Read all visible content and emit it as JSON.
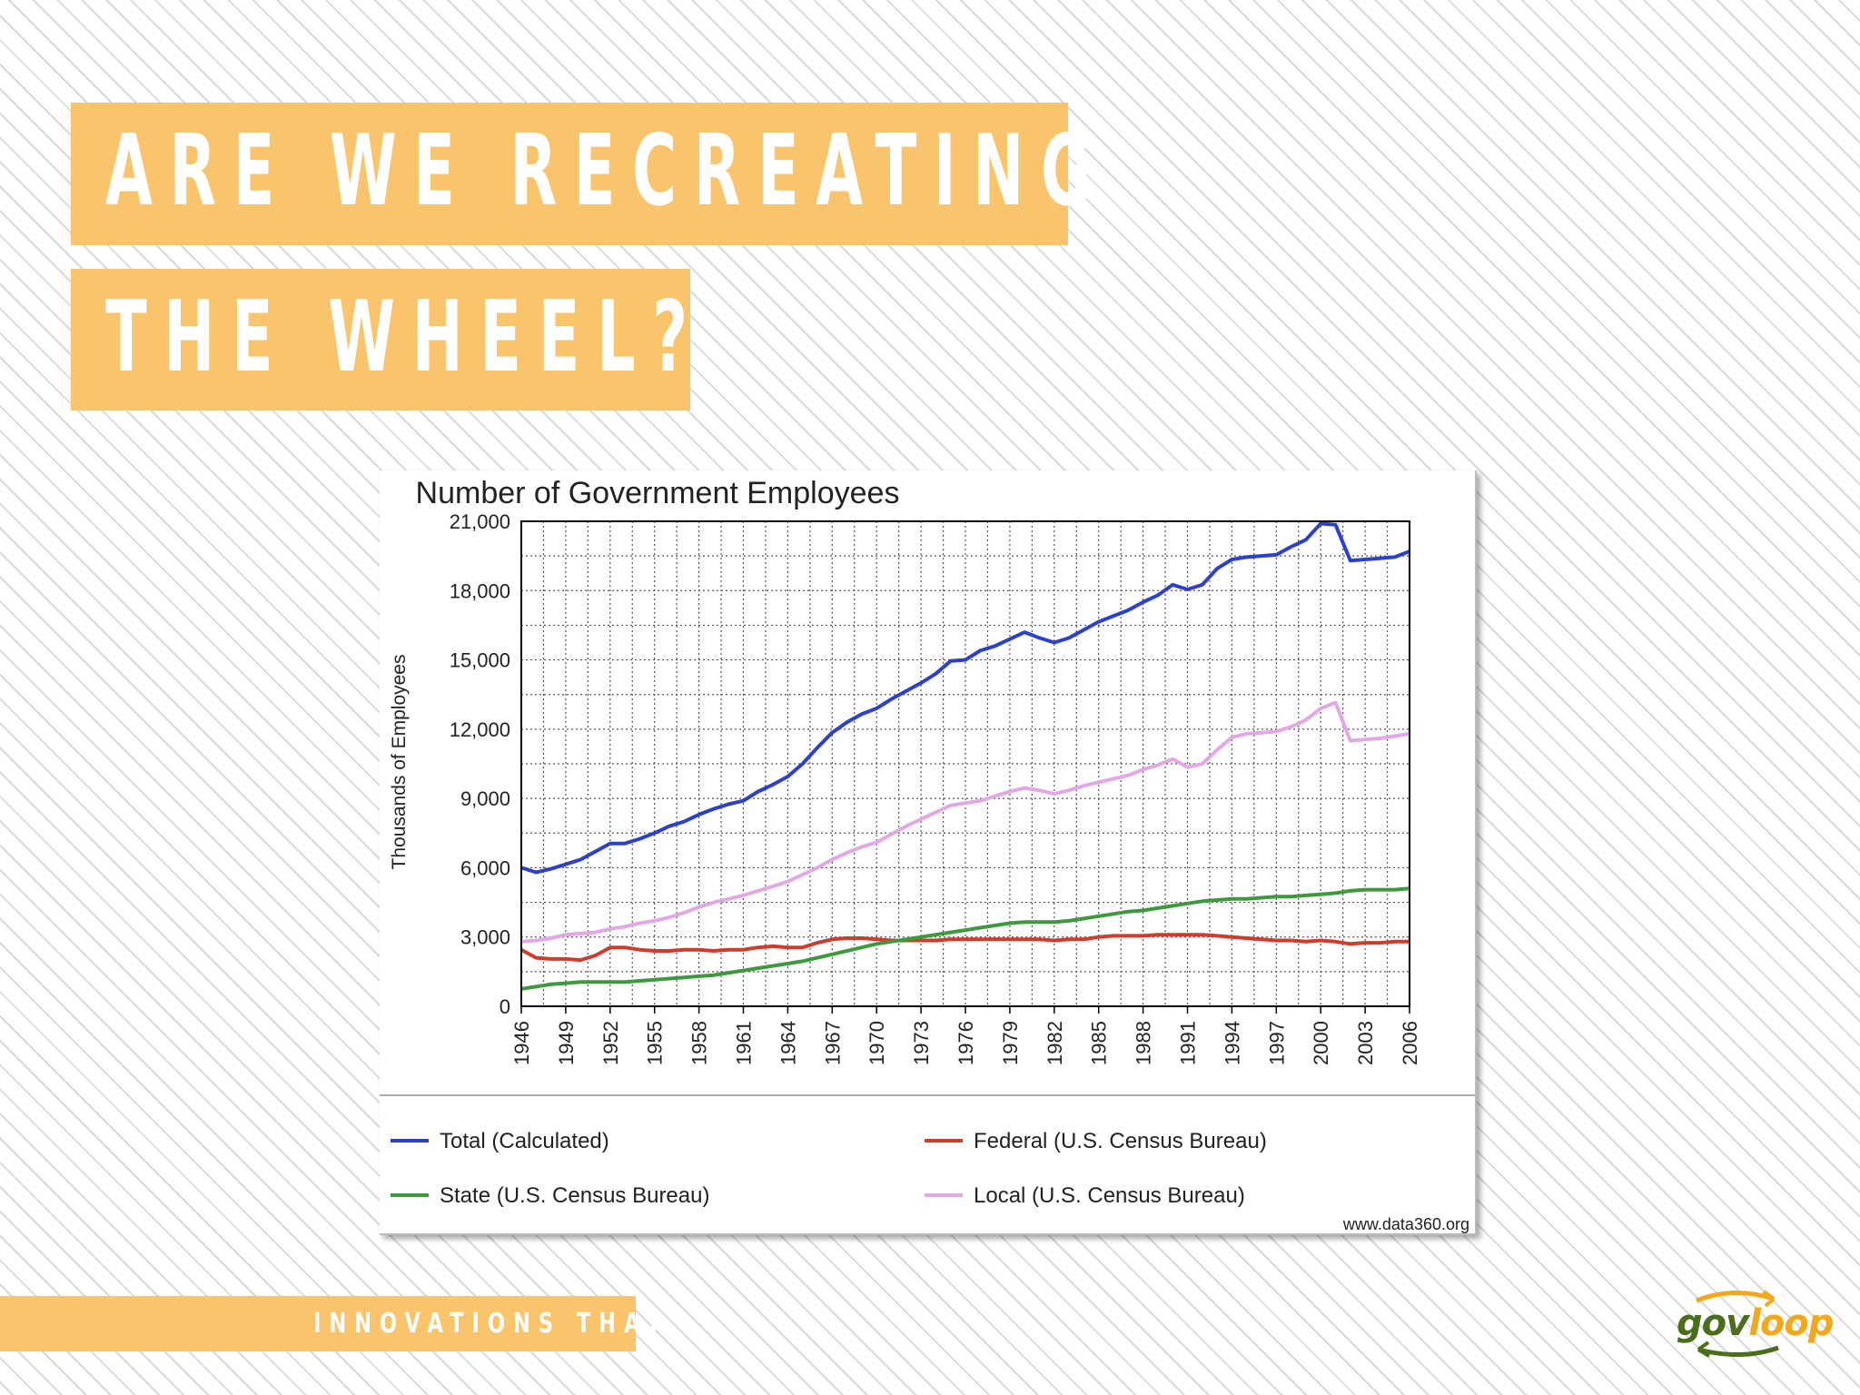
{
  "slide": {
    "title_line1": "ARE WE RECREATING",
    "title_line2": "THE WHEEL?",
    "footer_text": "INNOVATIONS THAT",
    "logo_gov": "gov",
    "logo_loop": "loop",
    "accent_color": "#f9c46b"
  },
  "chart_data": {
    "type": "line",
    "title": "Number of Government Employees",
    "xlabel": "",
    "ylabel": "Thousands of Employees",
    "xlim": [
      1946,
      2006
    ],
    "ylim": [
      0,
      21000
    ],
    "yticks": [
      0,
      3000,
      6000,
      9000,
      12000,
      15000,
      18000,
      21000
    ],
    "ytick_labels": [
      "0",
      "3,000",
      "6,000",
      "9,000",
      "12,000",
      "15,000",
      "18,000",
      "21,000"
    ],
    "xticks": [
      1946,
      1949,
      1952,
      1955,
      1958,
      1961,
      1964,
      1967,
      1970,
      1973,
      1976,
      1979,
      1982,
      1985,
      1988,
      1991,
      1994,
      1997,
      2000,
      2003,
      2006
    ],
    "xtick_labels": [
      "1946",
      "1949",
      "1952",
      "1955",
      "1958",
      "1961",
      "1964",
      "1967",
      "1970",
      "1973",
      "1976",
      "1979",
      "1982",
      "1985",
      "1988",
      "1991",
      "1994",
      "1997",
      "2000",
      "2003",
      "2006"
    ],
    "grid": true,
    "legend_position": "bottom",
    "source_note": "www.data360.org",
    "series": [
      {
        "name": "Total (Calculated)",
        "color": "#2b3fd0",
        "x": [
          1946,
          1947,
          1948,
          1949,
          1950,
          1951,
          1952,
          1953,
          1954,
          1955,
          1956,
          1957,
          1958,
          1959,
          1960,
          1961,
          1962,
          1963,
          1964,
          1965,
          1966,
          1967,
          1968,
          1969,
          1970,
          1971,
          1972,
          1973,
          1974,
          1975,
          1976,
          1977,
          1978,
          1979,
          1980,
          1981,
          1982,
          1983,
          1984,
          1985,
          1986,
          1987,
          1988,
          1989,
          1990,
          1991,
          1992,
          1993,
          1994,
          1995,
          1996,
          1997,
          1998,
          1999,
          2000,
          2001,
          2002,
          2003,
          2004,
          2005,
          2006
        ],
        "values": [
          6000,
          5800,
          5950,
          6150,
          6350,
          6700,
          7050,
          7050,
          7250,
          7500,
          7800,
          8000,
          8300,
          8550,
          8750,
          8900,
          9300,
          9600,
          9950,
          10500,
          11200,
          11850,
          12300,
          12650,
          12900,
          13300,
          13650,
          14000,
          14400,
          14950,
          15000,
          15400,
          15600,
          15900,
          16200,
          15950,
          15750,
          15950,
          16300,
          16650,
          16900,
          17150,
          17500,
          17800,
          18250,
          18050,
          18250,
          18950,
          19350,
          19450,
          19500,
          19550,
          19900,
          20200,
          20900,
          20850,
          19300,
          19350,
          19400,
          19450,
          19700
        ]
      },
      {
        "name": "Federal (U.S. Census Bureau)",
        "color": "#d23a2c",
        "x": [
          1946,
          1947,
          1948,
          1949,
          1950,
          1951,
          1952,
          1953,
          1954,
          1955,
          1956,
          1957,
          1958,
          1959,
          1960,
          1961,
          1962,
          1963,
          1964,
          1965,
          1966,
          1967,
          1968,
          1969,
          1970,
          1971,
          1972,
          1973,
          1974,
          1975,
          1976,
          1977,
          1978,
          1979,
          1980,
          1981,
          1982,
          1983,
          1984,
          1985,
          1986,
          1987,
          1988,
          1989,
          1990,
          1991,
          1992,
          1993,
          1994,
          1995,
          1996,
          1997,
          1998,
          1999,
          2000,
          2001,
          2002,
          2003,
          2004,
          2005,
          2006
        ],
        "values": [
          2450,
          2100,
          2050,
          2050,
          2000,
          2200,
          2550,
          2550,
          2450,
          2400,
          2400,
          2450,
          2450,
          2400,
          2450,
          2450,
          2550,
          2600,
          2550,
          2550,
          2750,
          2900,
          2950,
          2950,
          2900,
          2850,
          2850,
          2850,
          2850,
          2900,
          2900,
          2900,
          2900,
          2900,
          2900,
          2900,
          2850,
          2900,
          2900,
          3000,
          3050,
          3050,
          3050,
          3100,
          3100,
          3100,
          3100,
          3050,
          3000,
          2950,
          2900,
          2850,
          2850,
          2800,
          2850,
          2800,
          2700,
          2750,
          2750,
          2800,
          2800
        ]
      },
      {
        "name": "State (U.S. Census Bureau)",
        "color": "#3c9a3c",
        "x": [
          1946,
          1947,
          1948,
          1949,
          1950,
          1951,
          1952,
          1953,
          1954,
          1955,
          1956,
          1957,
          1958,
          1959,
          1960,
          1961,
          1962,
          1963,
          1964,
          1965,
          1966,
          1967,
          1968,
          1969,
          1970,
          1971,
          1972,
          1973,
          1974,
          1975,
          1976,
          1977,
          1978,
          1979,
          1980,
          1981,
          1982,
          1983,
          1984,
          1985,
          1986,
          1987,
          1988,
          1989,
          1990,
          1991,
          1992,
          1993,
          1994,
          1995,
          1996,
          1997,
          1998,
          1999,
          2000,
          2001,
          2002,
          2003,
          2004,
          2005,
          2006
        ],
        "values": [
          750,
          850,
          950,
          1000,
          1050,
          1050,
          1050,
          1050,
          1100,
          1150,
          1200,
          1250,
          1300,
          1350,
          1450,
          1550,
          1650,
          1750,
          1850,
          1950,
          2100,
          2250,
          2400,
          2550,
          2700,
          2800,
          2900,
          3000,
          3100,
          3200,
          3300,
          3400,
          3500,
          3600,
          3650,
          3650,
          3650,
          3700,
          3800,
          3900,
          4000,
          4100,
          4150,
          4250,
          4350,
          4450,
          4550,
          4600,
          4650,
          4650,
          4700,
          4750,
          4750,
          4800,
          4850,
          4900,
          5000,
          5050,
          5050,
          5050,
          5100
        ]
      },
      {
        "name": "Local  (U.S. Census Bureau)",
        "color": "#e2a8e6",
        "x": [
          1946,
          1947,
          1948,
          1949,
          1950,
          1951,
          1952,
          1953,
          1954,
          1955,
          1956,
          1957,
          1958,
          1959,
          1960,
          1961,
          1962,
          1963,
          1964,
          1965,
          1966,
          1967,
          1968,
          1969,
          1970,
          1971,
          1972,
          1973,
          1974,
          1975,
          1976,
          1977,
          1978,
          1979,
          1980,
          1981,
          1982,
          1983,
          1984,
          1985,
          1986,
          1987,
          1988,
          1989,
          1990,
          1991,
          1992,
          1993,
          1994,
          1995,
          1996,
          1997,
          1998,
          1999,
          2000,
          2001,
          2002,
          2003,
          2004,
          2005,
          2006
        ],
        "values": [
          2800,
          2850,
          2950,
          3100,
          3150,
          3200,
          3350,
          3450,
          3600,
          3700,
          3850,
          4050,
          4300,
          4500,
          4650,
          4800,
          5000,
          5200,
          5400,
          5700,
          6000,
          6350,
          6650,
          6900,
          7100,
          7450,
          7800,
          8100,
          8400,
          8700,
          8800,
          8900,
          9100,
          9300,
          9450,
          9350,
          9200,
          9350,
          9550,
          9700,
          9850,
          10000,
          10250,
          10450,
          10700,
          10350,
          10500,
          11100,
          11650,
          11800,
          11850,
          11900,
          12100,
          12400,
          12900,
          13150,
          11500,
          11550,
          11600,
          11700,
          11800
        ]
      }
    ]
  }
}
